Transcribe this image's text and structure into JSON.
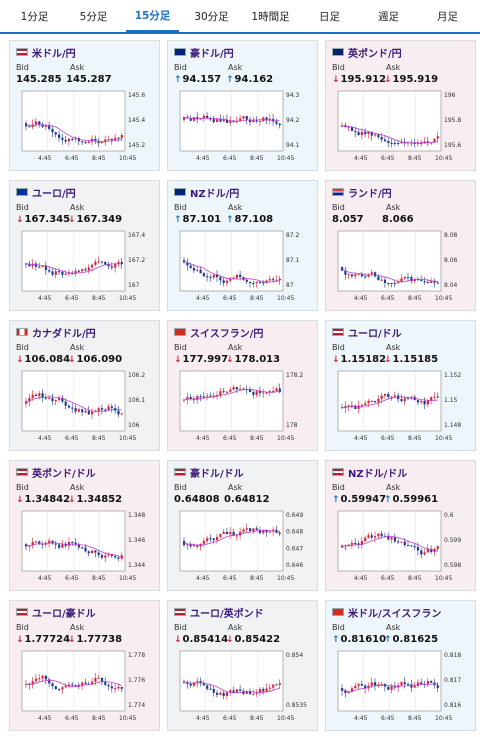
{
  "tabs": [
    {
      "label": "1分足",
      "active": false
    },
    {
      "label": "5分足",
      "active": false
    },
    {
      "label": "15分足",
      "active": true
    },
    {
      "label": "30分足",
      "active": false
    },
    {
      "label": "1時間足",
      "active": false
    },
    {
      "label": "日足",
      "active": false
    },
    {
      "label": "週足",
      "active": false
    },
    {
      "label": "月足",
      "active": false
    }
  ],
  "labels": {
    "bid": "Bid",
    "ask": "Ask"
  },
  "x_ticks": [
    "4:45",
    "6:45",
    "8:45",
    "10:45"
  ],
  "cards": [
    {
      "name": "米ドル/円",
      "flag": "us",
      "bid": "145.285",
      "ask": "145.287",
      "dir": "",
      "bg": "up",
      "ticks": [
        "145.6",
        "145.4",
        "145.2"
      ]
    },
    {
      "name": "豪ドル/円",
      "flag": "au",
      "bid": "94.157",
      "ask": "94.162",
      "dir": "up",
      "bg": "up",
      "ticks": [
        "94.3",
        "94.2",
        "94.1"
      ]
    },
    {
      "name": "英ポンド/円",
      "flag": "gb",
      "bid": "195.912",
      "ask": "195.919",
      "dir": "down",
      "bg": "down",
      "ticks": [
        "196",
        "195.8",
        "195.6"
      ]
    },
    {
      "name": "ユーロ/円",
      "flag": "eu",
      "bid": "167.345",
      "ask": "167.349",
      "dir": "down",
      "bg": "flat",
      "ticks": [
        "167.4",
        "167.2",
        "167"
      ]
    },
    {
      "name": "NZドル/円",
      "flag": "nz",
      "bid": "87.101",
      "ask": "87.108",
      "dir": "up",
      "bg": "up",
      "ticks": [
        "87.2",
        "87.1",
        "87"
      ]
    },
    {
      "name": "ランド/円",
      "flag": "za",
      "bid": "8.057",
      "ask": "8.066",
      "dir": "",
      "bg": "down",
      "ticks": [
        "8.08",
        "8.06",
        "8.04"
      ]
    },
    {
      "name": "カナダドル/円",
      "flag": "ca",
      "bid": "106.084",
      "ask": "106.090",
      "dir": "down",
      "bg": "flat",
      "ticks": [
        "106.2",
        "106.1",
        "106"
      ]
    },
    {
      "name": "スイスフラン/円",
      "flag": "ch",
      "bid": "177.997",
      "ask": "178.013",
      "dir": "down",
      "bg": "down",
      "ticks": [
        "178.2",
        "178"
      ]
    },
    {
      "name": "ユーロ/ドル",
      "flag": "us",
      "bid": "1.15182",
      "ask": "1.15185",
      "dir": "down",
      "bg": "up",
      "ticks": [
        "1.152",
        "1.15",
        "1.148"
      ]
    },
    {
      "name": "英ポンド/ドル",
      "flag": "us",
      "bid": "1.34842",
      "ask": "1.34852",
      "dir": "down",
      "bg": "down",
      "ticks": [
        "1.348",
        "1.346",
        "1.344"
      ]
    },
    {
      "name": "豪ドル/ドル",
      "flag": "us",
      "bid": "0.64808",
      "ask": "0.64812",
      "dir": "",
      "bg": "flat",
      "ticks": [
        "0.649",
        "0.648",
        "0.647",
        "0.646"
      ]
    },
    {
      "name": "NZドル/ドル",
      "flag": "us",
      "bid": "0.59947",
      "ask": "0.59961",
      "dir": "up",
      "bg": "down",
      "ticks": [
        "0.6",
        "0.599",
        "0.598"
      ]
    },
    {
      "name": "ユーロ/豪ドル",
      "flag": "us",
      "bid": "1.77724",
      "ask": "1.77738",
      "dir": "down",
      "bg": "down",
      "ticks": [
        "1.778",
        "1.776",
        "1.774"
      ]
    },
    {
      "name": "ユーロ/英ポンド",
      "flag": "us",
      "bid": "0.85414",
      "ask": "0.85422",
      "dir": "down",
      "bg": "flat",
      "ticks": [
        "0.854",
        "0.8535"
      ]
    },
    {
      "name": "米ドル/スイスフラン",
      "flag": "ch",
      "bid": "0.81610",
      "ask": "0.81625",
      "dir": "up",
      "bg": "up",
      "ticks": [
        "0.818",
        "0.817",
        "0.816"
      ]
    }
  ],
  "colors": {
    "up_arrow": "#1a73c7",
    "down_arrow": "#d7263d",
    "candle_up": "#d7263d",
    "candle_down": "#1f3a93",
    "ma": "#c040d0",
    "tab_active": "#1a73c7"
  }
}
